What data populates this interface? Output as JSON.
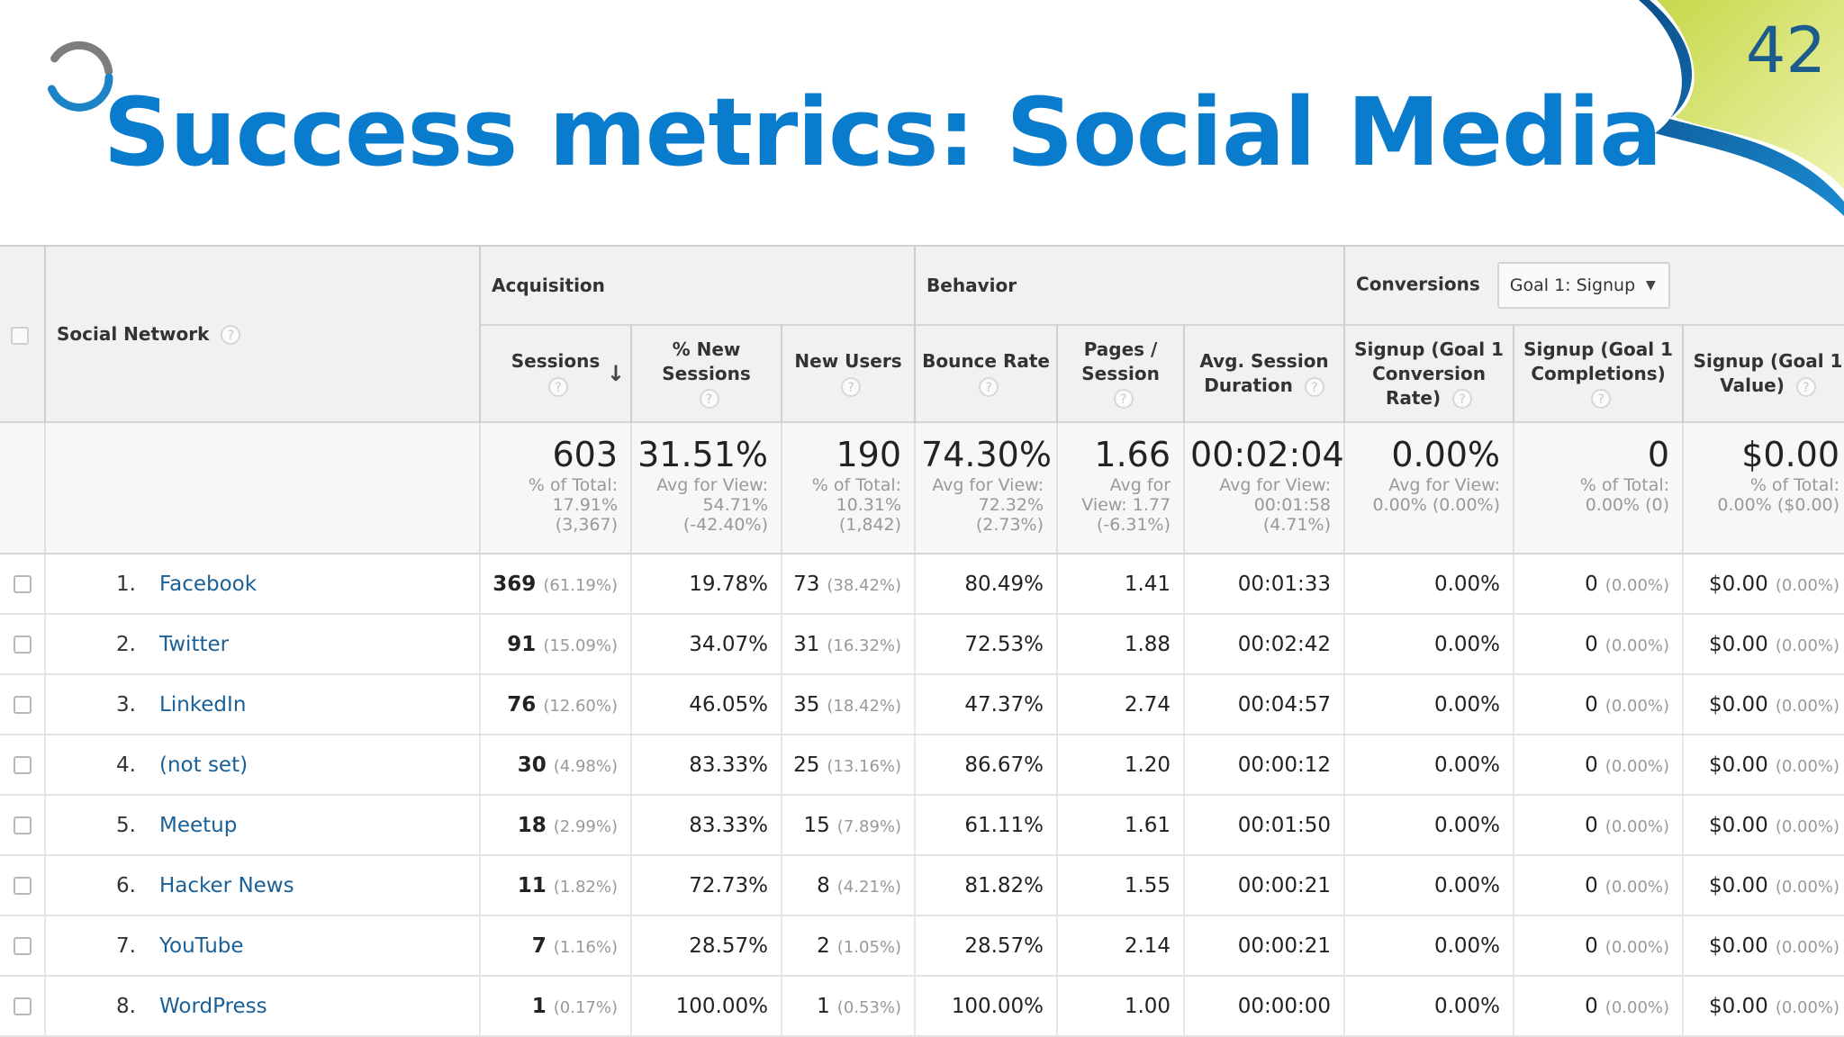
{
  "slide": {
    "title": "Success metrics: Social Media",
    "page_number": "42",
    "accent_color": "#0a7ccd"
  },
  "table": {
    "network_header": "Social Network",
    "groups": {
      "acquisition": "Acquisition",
      "behavior": "Behavior",
      "conversions": "Conversions",
      "goal_select": "Goal 1: Signup"
    },
    "columns": {
      "sessions": "Sessions",
      "new_sessions": "% New Sessions",
      "new_users": "New Users",
      "bounce": "Bounce Rate",
      "pages": "Pages / Session",
      "duration": "Avg. Session Duration",
      "conv_rate": "Signup (Goal 1 Conversion Rate)",
      "completions": "Signup (Goal 1 Completions)",
      "value": "Signup (Goal 1 Value)"
    },
    "help_glyph": "?",
    "totals": {
      "sessions": {
        "big": "603",
        "sub": [
          "% of Total:",
          "17.91%",
          "(3,367)"
        ]
      },
      "new_sessions": {
        "big": "31.51%",
        "sub": [
          "Avg for View:",
          "54.71%",
          "(-42.40%)"
        ]
      },
      "new_users": {
        "big": "190",
        "sub": [
          "% of Total:",
          "10.31%",
          "(1,842)"
        ]
      },
      "bounce": {
        "big": "74.30%",
        "sub": [
          "Avg for View:",
          "72.32%",
          "(2.73%)"
        ]
      },
      "pages": {
        "big": "1.66",
        "sub": [
          "Avg for",
          "View: 1.77",
          "(-6.31%)"
        ]
      },
      "duration": {
        "big": "00:02:04",
        "sub": [
          "Avg for View:",
          "00:01:58",
          "(4.71%)"
        ]
      },
      "conv_rate": {
        "big": "0.00%",
        "sub": [
          "Avg for View:",
          "0.00% (0.00%)",
          ""
        ]
      },
      "completions": {
        "big": "0",
        "sub": [
          "% of Total:",
          "0.00% (0)",
          ""
        ]
      },
      "value": {
        "big": "$0.00",
        "sub": [
          "% of Total:",
          "0.00% ($0.00)",
          ""
        ]
      }
    },
    "rows": [
      {
        "index": "1.",
        "network": "Facebook",
        "sessions": "369",
        "sessions_pct": "(61.19%)",
        "new_sessions": "19.78%",
        "new_users": "73",
        "new_users_pct": "(38.42%)",
        "bounce": "80.49%",
        "pages": "1.41",
        "duration": "00:01:33",
        "conv_rate": "0.00%",
        "completions": "0",
        "completions_pct": "(0.00%)",
        "value": "$0.00",
        "value_pct": "(0.00%)"
      },
      {
        "index": "2.",
        "network": "Twitter",
        "sessions": "91",
        "sessions_pct": "(15.09%)",
        "new_sessions": "34.07%",
        "new_users": "31",
        "new_users_pct": "(16.32%)",
        "bounce": "72.53%",
        "pages": "1.88",
        "duration": "00:02:42",
        "conv_rate": "0.00%",
        "completions": "0",
        "completions_pct": "(0.00%)",
        "value": "$0.00",
        "value_pct": "(0.00%)"
      },
      {
        "index": "3.",
        "network": "LinkedIn",
        "sessions": "76",
        "sessions_pct": "(12.60%)",
        "new_sessions": "46.05%",
        "new_users": "35",
        "new_users_pct": "(18.42%)",
        "bounce": "47.37%",
        "pages": "2.74",
        "duration": "00:04:57",
        "conv_rate": "0.00%",
        "completions": "0",
        "completions_pct": "(0.00%)",
        "value": "$0.00",
        "value_pct": "(0.00%)"
      },
      {
        "index": "4.",
        "network": "(not set)",
        "sessions": "30",
        "sessions_pct": "(4.98%)",
        "new_sessions": "83.33%",
        "new_users": "25",
        "new_users_pct": "(13.16%)",
        "bounce": "86.67%",
        "pages": "1.20",
        "duration": "00:00:12",
        "conv_rate": "0.00%",
        "completions": "0",
        "completions_pct": "(0.00%)",
        "value": "$0.00",
        "value_pct": "(0.00%)"
      },
      {
        "index": "5.",
        "network": "Meetup",
        "sessions": "18",
        "sessions_pct": "(2.99%)",
        "new_sessions": "83.33%",
        "new_users": "15",
        "new_users_pct": "(7.89%)",
        "bounce": "61.11%",
        "pages": "1.61",
        "duration": "00:01:50",
        "conv_rate": "0.00%",
        "completions": "0",
        "completions_pct": "(0.00%)",
        "value": "$0.00",
        "value_pct": "(0.00%)"
      },
      {
        "index": "6.",
        "network": "Hacker News",
        "sessions": "11",
        "sessions_pct": "(1.82%)",
        "new_sessions": "72.73%",
        "new_users": "8",
        "new_users_pct": "(4.21%)",
        "bounce": "81.82%",
        "pages": "1.55",
        "duration": "00:00:21",
        "conv_rate": "0.00%",
        "completions": "0",
        "completions_pct": "(0.00%)",
        "value": "$0.00",
        "value_pct": "(0.00%)"
      },
      {
        "index": "7.",
        "network": "YouTube",
        "sessions": "7",
        "sessions_pct": "(1.16%)",
        "new_sessions": "28.57%",
        "new_users": "2",
        "new_users_pct": "(1.05%)",
        "bounce": "28.57%",
        "pages": "2.14",
        "duration": "00:00:21",
        "conv_rate": "0.00%",
        "completions": "0",
        "completions_pct": "(0.00%)",
        "value": "$0.00",
        "value_pct": "(0.00%)"
      },
      {
        "index": "8.",
        "network": "WordPress",
        "sessions": "1",
        "sessions_pct": "(0.17%)",
        "new_sessions": "100.00%",
        "new_users": "1",
        "new_users_pct": "(0.53%)",
        "bounce": "100.00%",
        "pages": "1.00",
        "duration": "00:00:00",
        "conv_rate": "0.00%",
        "completions": "0",
        "completions_pct": "(0.00%)",
        "value": "$0.00",
        "value_pct": "(0.00%)"
      }
    ]
  }
}
